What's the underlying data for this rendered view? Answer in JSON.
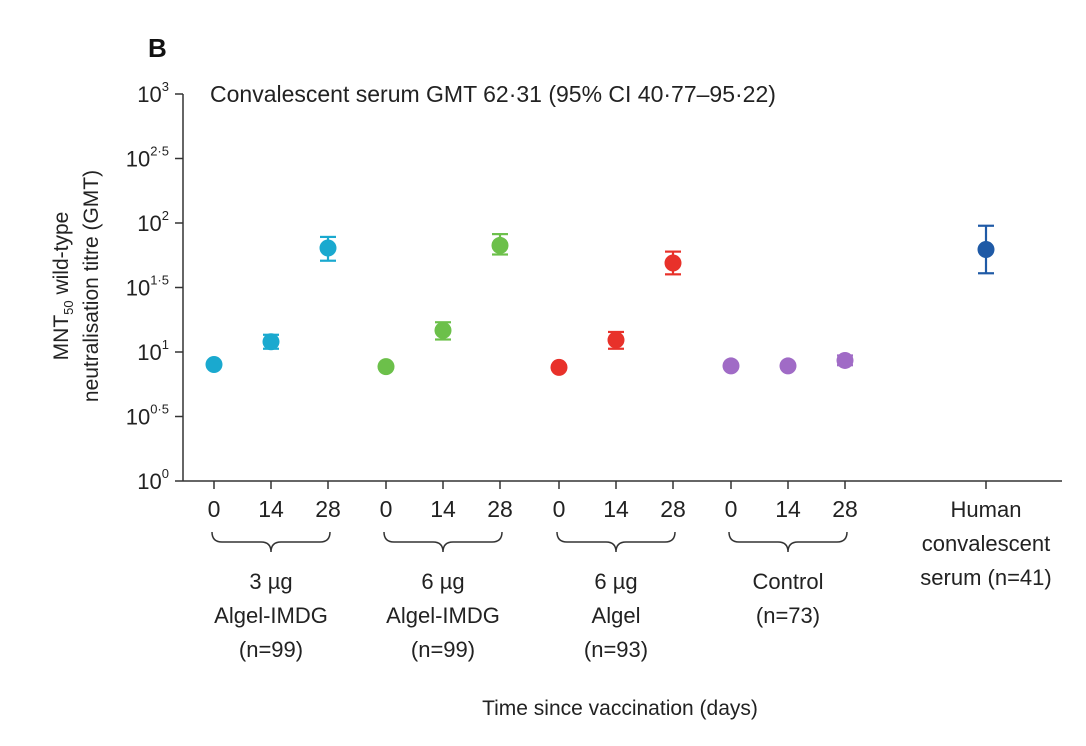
{
  "panel_label": "B",
  "chart_data": {
    "type": "scatter",
    "title": "",
    "annotation": "Convalescent serum GMT 62·31 (95% CI 40·77–95·22)",
    "xlabel": "Time since vaccination (days)",
    "ylabel": {
      "line1_prefix": "MNT",
      "line1_subscript": "50",
      "line1_suffix": " wild-type",
      "line2": "neutralisation titre (GMT)"
    },
    "y_scale": "log10",
    "ylim_exponent": [
      0,
      3
    ],
    "y_ticks": [
      {
        "base": "10",
        "exp": "0",
        "value_exp": 0
      },
      {
        "base": "10",
        "exp": "0·5",
        "value_exp": 0.5
      },
      {
        "base": "10",
        "exp": "1",
        "value_exp": 1
      },
      {
        "base": "10",
        "exp": "1·5",
        "value_exp": 1.5
      },
      {
        "base": "10",
        "exp": "2",
        "value_exp": 2
      },
      {
        "base": "10",
        "exp": "2·5",
        "value_exp": 2.5
      },
      {
        "base": "10",
        "exp": "3",
        "value_exp": 3
      }
    ],
    "groups": [
      {
        "name": "3 µg Algel-IMDG",
        "label_lines": [
          "3 µg",
          "Algel-IMDG",
          "(n=99)"
        ],
        "color": "#1aa9cf",
        "points": [
          {
            "x_label": "0",
            "gmt": 8.0,
            "ci_low": null,
            "ci_high": null
          },
          {
            "x_label": "14",
            "gmt": 12.0,
            "ci_low": 10.6,
            "ci_high": 13.6
          },
          {
            "x_label": "28",
            "gmt": 64.0,
            "ci_low": 51.0,
            "ci_high": 78.0
          }
        ]
      },
      {
        "name": "6 µg Algel-IMDG",
        "label_lines": [
          "6 µg",
          "Algel-IMDG",
          "(n=99)"
        ],
        "color": "#6cc04a",
        "points": [
          {
            "x_label": "0",
            "gmt": 7.7,
            "ci_low": null,
            "ci_high": null
          },
          {
            "x_label": "14",
            "gmt": 14.7,
            "ci_low": 12.5,
            "ci_high": 17.0
          },
          {
            "x_label": "28",
            "gmt": 67.0,
            "ci_low": 57.0,
            "ci_high": 82.0
          }
        ]
      },
      {
        "name": "6 µg Algel",
        "label_lines": [
          "6 µg",
          "Algel",
          "(n=93)"
        ],
        "color": "#e8312a",
        "points": [
          {
            "x_label": "0",
            "gmt": 7.6,
            "ci_low": null,
            "ci_high": null
          },
          {
            "x_label": "14",
            "gmt": 12.4,
            "ci_low": 10.6,
            "ci_high": 14.3
          },
          {
            "x_label": "28",
            "gmt": 49.0,
            "ci_low": 40.0,
            "ci_high": 60.0
          }
        ]
      },
      {
        "name": "Control",
        "label_lines": [
          "Control",
          "(n=73)"
        ],
        "color": "#a06bc6",
        "points": [
          {
            "x_label": "0",
            "gmt": 7.8,
            "ci_low": null,
            "ci_high": null
          },
          {
            "x_label": "14",
            "gmt": 7.8,
            "ci_low": null,
            "ci_high": null
          },
          {
            "x_label": "28",
            "gmt": 8.6,
            "ci_low": 7.9,
            "ci_high": 9.4
          }
        ]
      },
      {
        "name": "Human convalescent serum",
        "label_lines": [
          "Human",
          "convalescent",
          "serum (n=41)"
        ],
        "color": "#1f5aa6",
        "points": [
          {
            "x_label": "",
            "gmt": 62.31,
            "ci_low": 40.77,
            "ci_high": 95.22
          }
        ]
      }
    ]
  }
}
